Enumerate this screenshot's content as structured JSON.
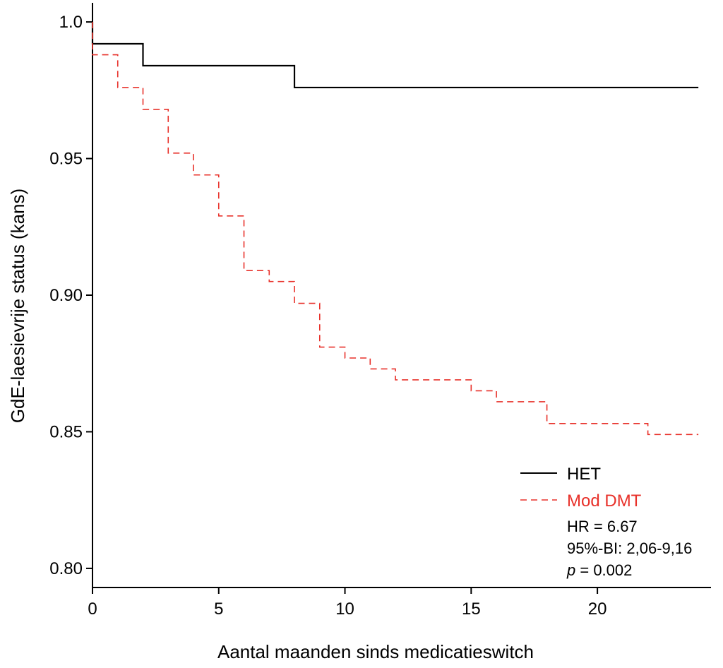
{
  "chart_data": {
    "type": "line",
    "step": true,
    "title": "",
    "xlabel": "Aantal maanden sinds medicatieswitch",
    "ylabel": "GdE-laesievrije status (kans)",
    "xlim": [
      0,
      24.5
    ],
    "ylim": [
      0.793,
      1.007
    ],
    "xticks": [
      0,
      5,
      10,
      15,
      20
    ],
    "xtick_labels": [
      "0",
      "5",
      "10",
      "15",
      "20"
    ],
    "yticks": [
      0.8,
      0.85,
      0.9,
      0.95,
      1.0
    ],
    "ytick_labels": [
      "0.80",
      "0.85",
      "0.90",
      "0.95",
      "1.0"
    ],
    "grid": false,
    "legend_position": "bottom-right",
    "series": [
      {
        "name": "HET",
        "color": "#000000",
        "style": "solid",
        "x": [
          0,
          2,
          8,
          24
        ],
        "y": [
          0.992,
          0.984,
          0.976,
          0.976
        ]
      },
      {
        "name": "Mod DMT",
        "color": "#e8312a",
        "style": "dashed",
        "x": [
          0,
          1,
          2,
          3,
          4,
          5,
          6,
          7,
          8,
          9,
          10,
          11,
          12,
          15,
          16,
          18,
          22,
          24
        ],
        "y": [
          0.988,
          0.976,
          0.968,
          0.952,
          0.944,
          0.929,
          0.909,
          0.905,
          0.897,
          0.881,
          0.877,
          0.873,
          0.869,
          0.865,
          0.861,
          0.853,
          0.849,
          0.849
        ]
      }
    ],
    "annotations": {
      "hr": "HR = 6.67",
      "ci": "95%-BI: 2,06-9,16",
      "p_symbol": "p",
      "p_value": " = 0.002"
    }
  }
}
